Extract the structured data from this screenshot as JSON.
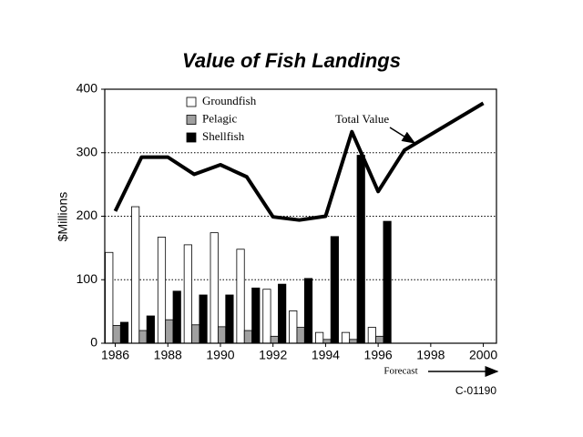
{
  "chart_data": {
    "type": "bar",
    "title": "Value of Fish Landings",
    "y_label": "$Millions",
    "x": [
      1986,
      1987,
      1988,
      1989,
      1990,
      1991,
      1992,
      1993,
      1994,
      1995,
      1996
    ],
    "series": [
      {
        "name": "Groundfish",
        "color": "#ffffff",
        "values": [
          143,
          215,
          167,
          155,
          174,
          148,
          85,
          51,
          17,
          17,
          25
        ]
      },
      {
        "name": "Pelagic",
        "color": "#a0a0a0",
        "values": [
          28,
          20,
          37,
          29,
          26,
          20,
          11,
          25,
          6,
          6,
          11
        ]
      },
      {
        "name": "Shellfish",
        "color": "#000000",
        "values": [
          33,
          43,
          82,
          76,
          76,
          87,
          93,
          102,
          168,
          296,
          192
        ]
      },
      {
        "name": "Total Value",
        "type": "line",
        "color": "#000000",
        "x": [
          1986,
          1987,
          1988,
          1989,
          1990,
          1991,
          1992,
          1993,
          1994,
          1995,
          1996,
          1997,
          2000
        ],
        "values": [
          208,
          293,
          293,
          266,
          281,
          262,
          199,
          194,
          200,
          333,
          239,
          304,
          378
        ]
      }
    ],
    "xlim": [
      1985.6,
      2000.5
    ],
    "xticks": [
      1986,
      1988,
      1990,
      1992,
      1994,
      1996,
      1998,
      2000
    ],
    "ylim": [
      0,
      400
    ],
    "yticks": [
      0,
      100,
      200,
      300,
      400
    ],
    "grid": true,
    "forecast_label": "Forecast",
    "code": "C-01190"
  }
}
